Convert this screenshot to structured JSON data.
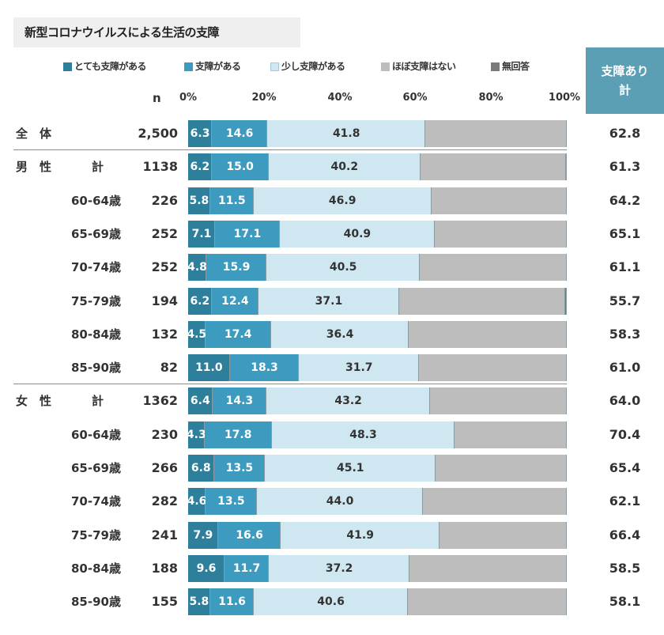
{
  "title": "新型コロナウイルスによる生活の支障",
  "colors": {
    "very": "#2e7f9c",
    "some": "#3d9bbf",
    "little": "#cfe7f0",
    "hardly": "#bdbdbd",
    "noanswer": "#7a7a7a",
    "total_bg": "#5b9fb5"
  },
  "legend": [
    {
      "key": "very",
      "label": "とても支障がある",
      "color": "#2e7f9c"
    },
    {
      "key": "some",
      "label": "支障がある",
      "color": "#3d9bbf"
    },
    {
      "key": "little",
      "label": "少し支障がある",
      "color": "#cfe7f0"
    },
    {
      "key": "hardly",
      "label": "ほぼ支障はない",
      "color": "#bdbdbd"
    },
    {
      "key": "noanswer",
      "label": "無回答",
      "color": "#7a7a7a"
    }
  ],
  "header": {
    "n_label": "n",
    "total_label_line1": "支障あり",
    "total_label_line2": "計"
  },
  "chart_data": {
    "type": "bar",
    "orientation": "horizontal",
    "stacked": true,
    "title": "新型コロナウイルスによる生活の支障",
    "xlim": [
      0,
      100
    ],
    "x_ticks": [
      "0%",
      "20%",
      "40%",
      "60%",
      "80%",
      "100%"
    ],
    "series_names": [
      "とても支障がある",
      "支障がある",
      "少し支障がある",
      "ほぼ支障はない",
      "無回答"
    ],
    "rows": [
      {
        "group": "全　体",
        "label": "",
        "n": "2,500",
        "very": 6.3,
        "some": 14.6,
        "little": 41.8,
        "noanswer": 0.0,
        "total": "62.8"
      },
      {
        "group": "男　性",
        "label": "計",
        "n": "1138",
        "very": 6.2,
        "some": 15.0,
        "little": 40.2,
        "noanswer": 0.2,
        "total": "61.3"
      },
      {
        "group": "",
        "label": "60-64歳",
        "n": "226",
        "very": 5.8,
        "some": 11.5,
        "little": 46.9,
        "noanswer": 0.0,
        "total": "64.2"
      },
      {
        "group": "",
        "label": "65-69歳",
        "n": "252",
        "very": 7.1,
        "some": 17.1,
        "little": 40.9,
        "noanswer": 0.0,
        "total": "65.1"
      },
      {
        "group": "",
        "label": "70-74歳",
        "n": "252",
        "very": 4.8,
        "some": 15.9,
        "little": 40.5,
        "noanswer": 0.0,
        "total": "61.1"
      },
      {
        "group": "",
        "label": "75-79歳",
        "n": "194",
        "very": 6.2,
        "some": 12.4,
        "little": 37.1,
        "noanswer": 0.5,
        "total": "55.7"
      },
      {
        "group": "",
        "label": "80-84歳",
        "n": "132",
        "very": 4.5,
        "some": 17.4,
        "little": 36.4,
        "noanswer": 0.0,
        "total": "58.3"
      },
      {
        "group": "",
        "label": "85-90歳",
        "n": "82",
        "very": 11.0,
        "some": 18.3,
        "little": 31.7,
        "noanswer": 0.0,
        "total": "61.0"
      },
      {
        "group": "女　性",
        "label": "計",
        "n": "1362",
        "very": 6.4,
        "some": 14.3,
        "little": 43.2,
        "noanswer": 0.0,
        "total": "64.0"
      },
      {
        "group": "",
        "label": "60-64歳",
        "n": "230",
        "very": 4.3,
        "some": 17.8,
        "little": 48.3,
        "noanswer": 0.0,
        "total": "70.4"
      },
      {
        "group": "",
        "label": "65-69歳",
        "n": "266",
        "very": 6.8,
        "some": 13.5,
        "little": 45.1,
        "noanswer": 0.0,
        "total": "65.4"
      },
      {
        "group": "",
        "label": "70-74歳",
        "n": "282",
        "very": 4.6,
        "some": 13.5,
        "little": 44.0,
        "noanswer": 0.0,
        "total": "62.1"
      },
      {
        "group": "",
        "label": "75-79歳",
        "n": "241",
        "very": 7.9,
        "some": 16.6,
        "little": 41.9,
        "noanswer": 0.0,
        "total": "66.4"
      },
      {
        "group": "",
        "label": "80-84歳",
        "n": "188",
        "very": 9.6,
        "some": 11.7,
        "little": 37.2,
        "noanswer": 0.0,
        "total": "58.5"
      },
      {
        "group": "",
        "label": "85-90歳",
        "n": "155",
        "very": 5.8,
        "some": 11.6,
        "little": 40.6,
        "noanswer": 0.0,
        "total": "58.1"
      }
    ]
  }
}
